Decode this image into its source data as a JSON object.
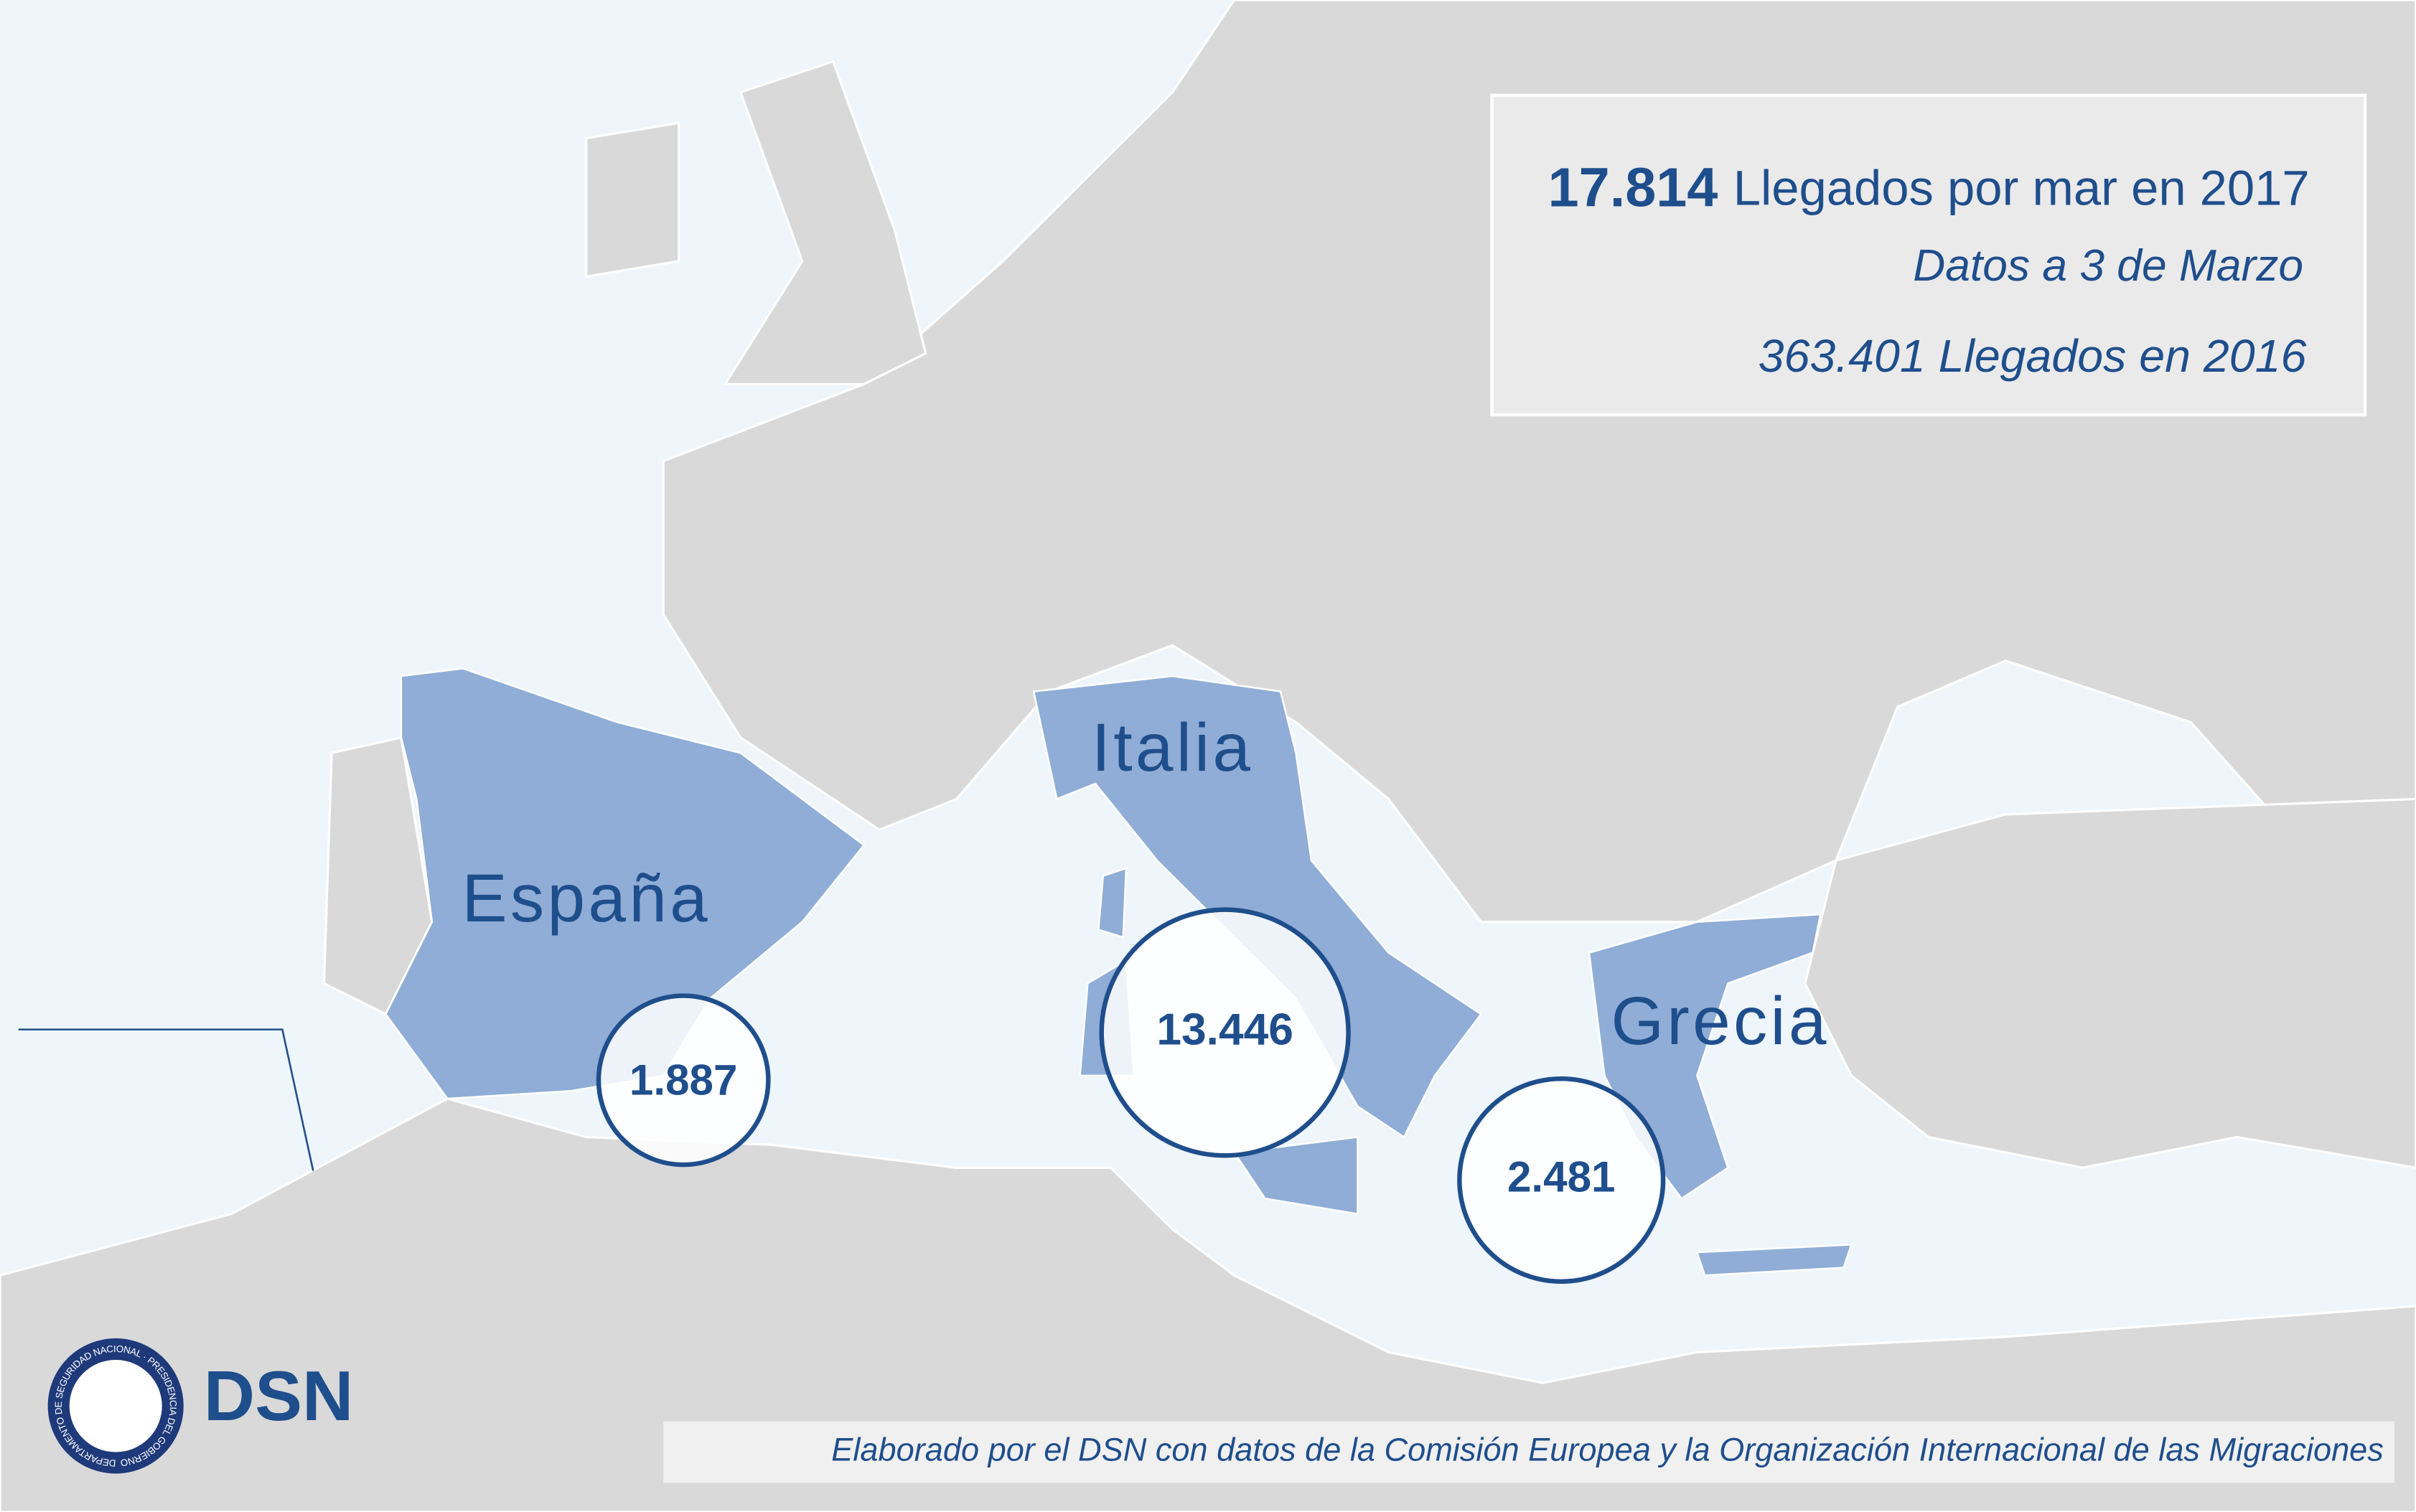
{
  "summary": {
    "total_value": "17.814",
    "total_label": "Llegados por mar en 2017",
    "date_note": "Datos a 3 de Marzo",
    "previous": "363.401 Llegados en 2016"
  },
  "regions": [
    {
      "name": "España",
      "arrivals": "1.887"
    },
    {
      "name": "Italia",
      "arrivals": "13.446"
    },
    {
      "name": "Grecia",
      "arrivals": "2.481"
    }
  ],
  "logo": {
    "text": "DSN",
    "seal_text": "DEPARTAMENTO DE SEGURIDAD NACIONAL · PRESIDENCIA DEL GOBIERNO"
  },
  "source": "Elaborado por el DSN con datos de la Comisión Europea y la Organización Internacional de las Migraciones"
}
